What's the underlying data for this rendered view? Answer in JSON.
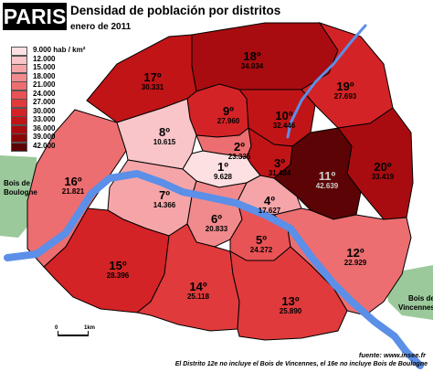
{
  "title": "PARIS",
  "subtitle": "Densidad de población por distritos",
  "date": "enero de 2011",
  "legend": {
    "items": [
      {
        "label": "9.000 hab / km²",
        "color": "#fce0e2"
      },
      {
        "label": "12.000",
        "color": "#f9c5c8"
      },
      {
        "label": "15.000",
        "color": "#f5a5a8"
      },
      {
        "label": "18.000",
        "color": "#f18a8d"
      },
      {
        "label": "21.000",
        "color": "#ec6e70"
      },
      {
        "label": "24.000",
        "color": "#e85355"
      },
      {
        "label": "27.000",
        "color": "#e03a3c"
      },
      {
        "label": "30.000",
        "color": "#d42326"
      },
      {
        "label": "33.000",
        "color": "#c11417"
      },
      {
        "label": "36.000",
        "color": "#a90c10"
      },
      {
        "label": "39.000",
        "color": "#8a0709"
      },
      {
        "label": "42.000",
        "color": "#5c0305"
      }
    ]
  },
  "districts": [
    {
      "num": "1º",
      "pop": "9.628",
      "color": "#fce0e2",
      "text": "#000000"
    },
    {
      "num": "2º",
      "pop": "23.335",
      "color": "#ec6e70",
      "text": "#000000"
    },
    {
      "num": "3º",
      "pop": "31.484",
      "color": "#c11417",
      "text": "#000000"
    },
    {
      "num": "4º",
      "pop": "17.627",
      "color": "#f5a5a8",
      "text": "#000000"
    },
    {
      "num": "5º",
      "pop": "24.272",
      "color": "#e85355",
      "text": "#000000"
    },
    {
      "num": "6º",
      "pop": "20.833",
      "color": "#f18a8d",
      "text": "#000000"
    },
    {
      "num": "7º",
      "pop": "14.366",
      "color": "#f5a5a8",
      "text": "#000000"
    },
    {
      "num": "8º",
      "pop": "10.615",
      "color": "#f9c5c8",
      "text": "#000000"
    },
    {
      "num": "9º",
      "pop": "27.960",
      "color": "#d42326",
      "text": "#000000"
    },
    {
      "num": "10º",
      "pop": "32.446",
      "color": "#c11417",
      "text": "#000000"
    },
    {
      "num": "11º",
      "pop": "42.639",
      "color": "#5c0305",
      "text": "#cfcfcf"
    },
    {
      "num": "12º",
      "pop": "22.929",
      "color": "#ec6e70",
      "text": "#000000"
    },
    {
      "num": "13º",
      "pop": "25.890",
      "color": "#e03a3c",
      "text": "#000000"
    },
    {
      "num": "14º",
      "pop": "25.118",
      "color": "#e03a3c",
      "text": "#000000"
    },
    {
      "num": "15º",
      "pop": "28.396",
      "color": "#d42326",
      "text": "#000000"
    },
    {
      "num": "16º",
      "pop": "21.821",
      "color": "#ec6e70",
      "text": "#000000"
    },
    {
      "num": "17º",
      "pop": "30.331",
      "color": "#c11417",
      "text": "#000000"
    },
    {
      "num": "18º",
      "pop": "34.034",
      "color": "#a90c10",
      "text": "#000000"
    },
    {
      "num": "19º",
      "pop": "27.693",
      "color": "#d42326",
      "text": "#000000"
    },
    {
      "num": "20º",
      "pop": "33.419",
      "color": "#a90c10",
      "text": "#000000"
    }
  ],
  "bois_boulogne": "Bois de\nBoulogne",
  "bois_vincennes": "Bois de\nVincennes",
  "scale": {
    "left": "0",
    "right": "1km"
  },
  "source": "fuente: www.insee.fr",
  "note": "El Distrito 12e no incluye el Bois de Vincennes, el 16e no incluye Bois de Boulogne",
  "colors": {
    "river": "#5b8fe8",
    "park": "#9bc99b",
    "border": "#000000"
  }
}
